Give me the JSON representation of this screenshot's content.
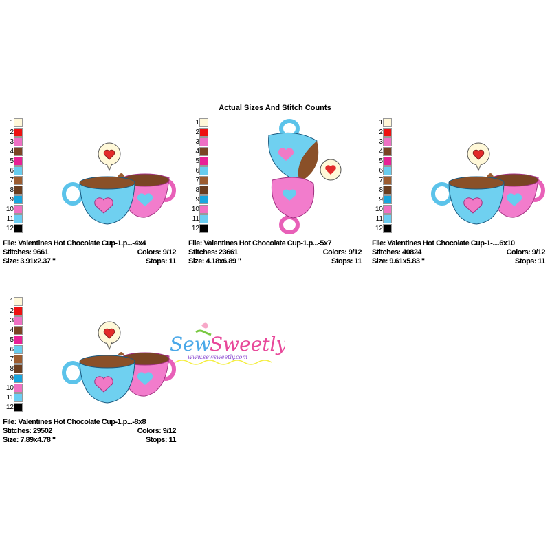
{
  "header": {
    "title": "Actual Sizes And Stitch Counts"
  },
  "palette": [
    {
      "num": "1",
      "color": "#fff8d8"
    },
    {
      "num": "2",
      "color": "#ee1111"
    },
    {
      "num": "3",
      "color": "#ee70c4"
    },
    {
      "num": "4",
      "color": "#7a4424"
    },
    {
      "num": "5",
      "color": "#e82196"
    },
    {
      "num": "6",
      "color": "#68cdef"
    },
    {
      "num": "7",
      "color": "#9c5c30"
    },
    {
      "num": "8",
      "color": "#6b3e20"
    },
    {
      "num": "9",
      "color": "#18a6de"
    },
    {
      "num": "10",
      "color": "#f070c2"
    },
    {
      "num": "11",
      "color": "#6ccdf2"
    },
    {
      "num": "12",
      "color": "#000000"
    }
  ],
  "designs": [
    {
      "file": "File: Valentines Hot Chocolate Cup-1.p...-4x4",
      "stitches": "Stitches: 9661",
      "colors": "Colors: 9/12",
      "size": "Size: 3.91x2.37 \"",
      "stops": "Stops: 11",
      "layout": "horizontal"
    },
    {
      "file": "File: Valentines Hot Chocolate Cup-1.p...-5x7",
      "stitches": "Stitches: 23661",
      "colors": "Colors: 9/12",
      "size": "Size: 4.18x6.89 \"",
      "stops": "Stops: 11",
      "layout": "vertical"
    },
    {
      "file": "File: Valentines Hot Chocolate Cup-1-....6x10",
      "stitches": "Stitches: 40824",
      "colors": "Colors: 9/12",
      "size": "Size: 9.61x5.83 \"",
      "stops": "Stops: 11",
      "layout": "horizontal"
    },
    {
      "file": "File: Valentines Hot Chocolate Cup-1.p...-8x8",
      "stitches": "Stitches: 29502",
      "colors": "Colors: 9/12",
      "size": "Size: 7.89x4.78 \"",
      "stops": "Stops: 11",
      "layout": "horizontal"
    }
  ],
  "watermark": {
    "brand": "Sew Sweetly",
    "url": "www.sewsweetly.com"
  }
}
